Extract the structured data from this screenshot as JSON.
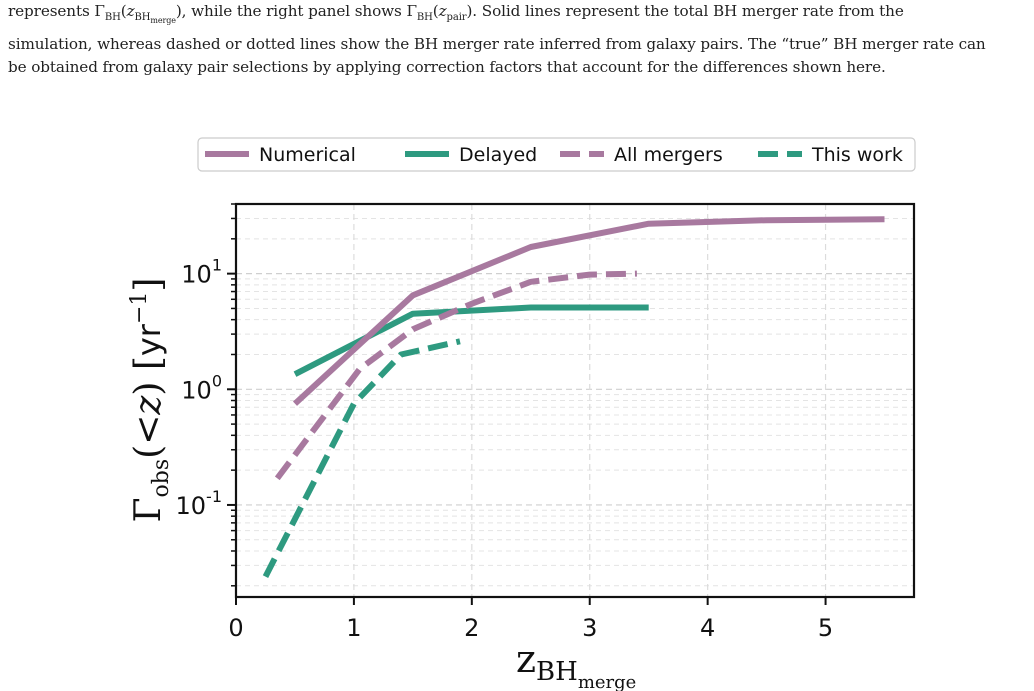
{
  "caption": {
    "line1": "represents Γ_BH(z_BHmerge), while the right panel shows Γ_BH(z_pair). Solid lines represent the total BH merger rate from the",
    "line2": "simulation, whereas dashed or dotted lines show the BH merger rate inferred from galaxy pairs. The “true” BH merger rate can",
    "line3": "be obtained from galaxy pair selections by applying correction factors that account for the differences shown here."
  },
  "colors": {
    "purple": "#a8799f",
    "green": "#2e9a80"
  },
  "chart_data": {
    "type": "line",
    "xlabel": "z_BHmerge",
    "ylabel": "Γobs(<z) [yr⁻¹]",
    "xlim": [
      0,
      5.75
    ],
    "ylim": [
      0.016,
      40
    ],
    "yscale": "log",
    "grid": true,
    "legend": "top",
    "x_ticks": [
      "0",
      "1",
      "2",
      "3",
      "4",
      "5"
    ],
    "y_ticks": [
      "10⁻¹",
      "10⁰",
      "10¹"
    ],
    "series": [
      {
        "name": "Numerical",
        "color": "#a8799f",
        "dash": "solid",
        "x": [
          0.5,
          1.5,
          2.5,
          3.5,
          4.5,
          5.5
        ],
        "y": [
          0.75,
          6.5,
          17,
          27,
          29,
          29.5
        ]
      },
      {
        "name": "Delayed",
        "color": "#2e9a80",
        "dash": "solid",
        "x": [
          0.5,
          1.5,
          2.5,
          3.5
        ],
        "y": [
          1.35,
          4.5,
          5.1,
          5.1
        ]
      },
      {
        "name": "All mergers",
        "color": "#a8799f",
        "dash": "dashed",
        "x": [
          0.35,
          1.05,
          1.5,
          2.0,
          2.5,
          3.0,
          3.4
        ],
        "y": [
          0.17,
          1.5,
          3.3,
          5.5,
          8.5,
          9.8,
          10
        ]
      },
      {
        "name": "This work",
        "color": "#2e9a80",
        "dash": "dashed",
        "x": [
          0.25,
          1.0,
          1.4,
          1.9
        ],
        "y": [
          0.024,
          0.75,
          2.0,
          2.6
        ]
      }
    ]
  }
}
